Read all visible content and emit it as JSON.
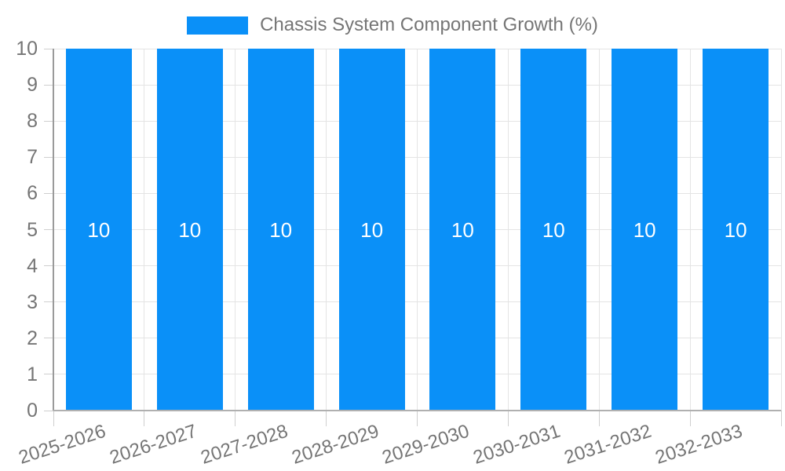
{
  "chart_data": {
    "type": "bar",
    "title": "",
    "legend": {
      "label": "Chassis System Component Growth (%)",
      "position": "top-center"
    },
    "categories": [
      "2025-2026",
      "2026-2027",
      "2027-2028",
      "2028-2029",
      "2029-2030",
      "2030-2031",
      "2031-2032",
      "2032-2033"
    ],
    "series": [
      {
        "name": "Chassis System Component Growth (%)",
        "values": [
          10,
          10,
          10,
          10,
          10,
          10,
          10,
          10
        ],
        "color": "#0a90f8"
      }
    ],
    "bar_value_labels": [
      "10",
      "10",
      "10",
      "10",
      "10",
      "10",
      "10",
      "10"
    ],
    "xlabel": "",
    "ylabel": "",
    "ylim": [
      0,
      10
    ],
    "yticks": [
      0,
      1,
      2,
      3,
      4,
      5,
      6,
      7,
      8,
      9,
      10
    ],
    "grid": true,
    "x_label_rotation_deg": -18,
    "colors": {
      "bar": "#0a90f8",
      "bar_label_text": "#ffffff",
      "grid": "#e4e4e4",
      "tick": "#cfcfcf",
      "y_axis_line": "#9a9a9a",
      "baseline": "#b0b0b0",
      "label_text": "#757575",
      "background": "#ffffff"
    }
  }
}
